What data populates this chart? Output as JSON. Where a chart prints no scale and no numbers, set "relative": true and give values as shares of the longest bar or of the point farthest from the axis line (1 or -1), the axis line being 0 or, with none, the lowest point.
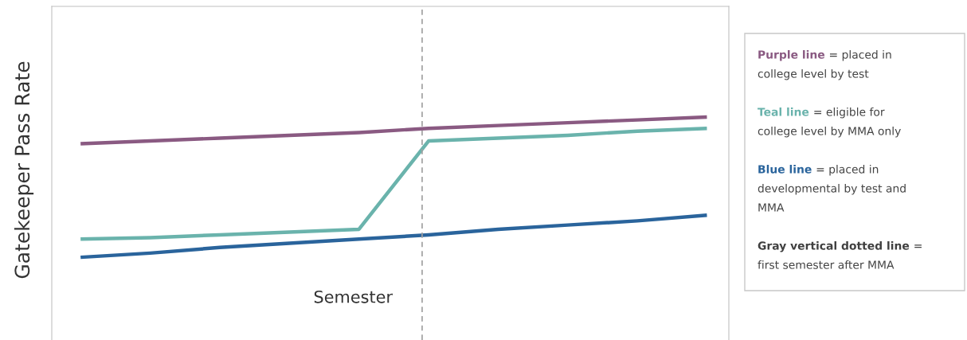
{
  "chart_data": {
    "type": "line",
    "relative": true,
    "xlabel": "Semester",
    "ylabel": "Gatekeeper Pass Rate",
    "line_style": "solid",
    "categories": [
      null,
      null,
      null,
      null,
      null,
      null,
      null,
      null,
      null,
      null
    ],
    "series": [
      {
        "name": "Purple line",
        "color": "#8a5a82",
        "values": [
          0.81,
          0.83,
          0.85,
          0.87,
          0.89,
          0.92,
          0.94,
          0.96,
          0.98,
          1.0
        ]
      },
      {
        "name": "Teal line",
        "color": "#6ab3ac",
        "values": [
          0.13,
          0.14,
          0.16,
          0.18,
          0.2,
          0.83,
          0.85,
          0.87,
          0.9,
          0.92
        ]
      },
      {
        "name": "Blue line",
        "color": "#2a649c",
        "values": [
          0.0,
          0.03,
          0.07,
          0.1,
          0.13,
          0.16,
          0.2,
          0.23,
          0.26,
          0.3
        ]
      }
    ],
    "ref_lines": [
      {
        "axis": "x",
        "label": "Gray vertical dotted line",
        "color": "#a0a0a0",
        "line_style": "dashed"
      }
    ],
    "annotations": [
      "= placed in\ncollege level by test",
      "= eligible for\ncollege level by MMA only",
      "= placed in\ndevelopmental by test and\nMMA",
      "=\nfirst semester after MMA"
    ]
  }
}
